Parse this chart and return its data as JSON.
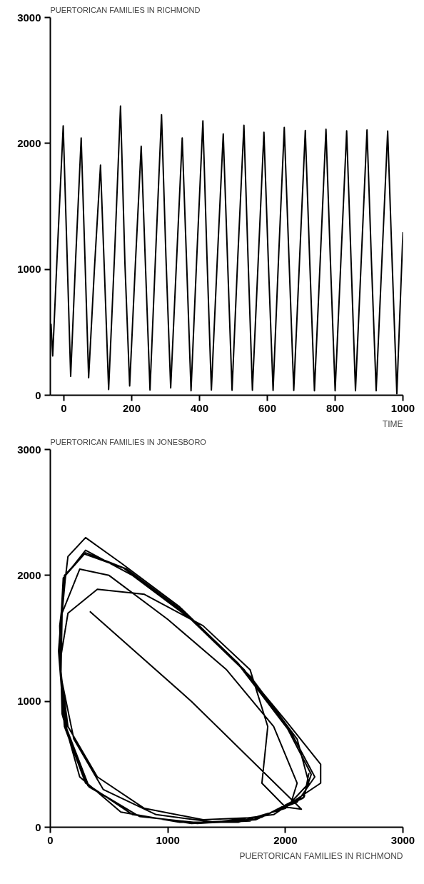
{
  "chart_data": [
    {
      "type": "line",
      "ylabel": "PUERTORICAN FAMILIES IN RICHMOND",
      "xlabel": "TIME",
      "xlim": [
        -40,
        1000
      ],
      "ylim": [
        0,
        3000
      ],
      "xticks": [
        0,
        200,
        400,
        600,
        800,
        1000
      ],
      "yticks": [
        0,
        1000,
        2000,
        3000
      ],
      "x": [
        -38,
        -33,
        -20,
        -2,
        9,
        20,
        35,
        51,
        62,
        73,
        90,
        108,
        120,
        132,
        150,
        167,
        180,
        194,
        211,
        228,
        241,
        254,
        271,
        288,
        301,
        315,
        332,
        349,
        362,
        375,
        392,
        410,
        422,
        435,
        452,
        470,
        483,
        496,
        513,
        531,
        543,
        556,
        573,
        590,
        603,
        617,
        633,
        650,
        664,
        678,
        695,
        712,
        725,
        739,
        756,
        773,
        786,
        800,
        817,
        834,
        847,
        860,
        877,
        894,
        907,
        921,
        938,
        955,
        968,
        982,
        1000
      ],
      "series": [
        {
          "color": "#000000",
          "values": [
            567,
            312,
            1100,
            2140,
            1150,
            150,
            1100,
            2043,
            1100,
            139,
            1000,
            1827,
            950,
            46,
            1150,
            2297,
            1050,
            74,
            1050,
            1978,
            1000,
            42,
            1150,
            2228,
            1100,
            58,
            1050,
            2043,
            1050,
            35,
            1100,
            2179,
            1100,
            42,
            1050,
            2075,
            1050,
            40,
            1100,
            2144,
            1100,
            40,
            1060,
            2089,
            1060,
            38,
            1080,
            2126,
            1080,
            38,
            1070,
            2103,
            1070,
            35,
            1070,
            2112,
            1070,
            35,
            1070,
            2100,
            1070,
            35,
            1070,
            2107,
            1070,
            35,
            1070,
            2098,
            1070,
            12,
            1295
          ]
        }
      ]
    },
    {
      "type": "line",
      "ylabel": "PUERTORICAN FAMILIES IN JONESBORO",
      "xlabel": "PUERTORICAN FAMILIES IN RICHMOND",
      "xlim": [
        0,
        3000
      ],
      "ylim": [
        0,
        3000
      ],
      "xticks": [
        0,
        1000,
        2000,
        3000
      ],
      "yticks": [
        0,
        1000,
        2000,
        3000
      ],
      "x": [
        336,
        1200,
        2136,
        2000,
        1800,
        1850,
        1700,
        1300,
        800,
        400,
        150,
        80,
        150,
        400,
        800,
        1300,
        1800,
        2050,
        2100,
        1900,
        1500,
        1000,
        500,
        250,
        100,
        90,
        200,
        450,
        900,
        1400,
        1900,
        2300,
        2300,
        2000,
        1600,
        1100,
        600,
        300,
        150,
        80,
        100,
        250,
        600,
        1100,
        1600,
        2000,
        2200,
        2100,
        1700,
        1200,
        700,
        300,
        130,
        70,
        120,
        300,
        700,
        1200,
        1700,
        2100,
        2250,
        2050,
        1650,
        1150,
        650,
        300,
        120,
        70,
        130,
        320,
        750,
        1250,
        1750,
        2150,
        2220,
        2020,
        1620,
        1120,
        620,
        290,
        110,
        75,
        140,
        330,
        760,
        1260,
        1760,
        2160,
        2200
      ],
      "series": [
        {
          "color": "#000000",
          "values": [
            1714,
            1000,
            143,
            160,
            350,
            800,
            1250,
            1600,
            1850,
            1890,
            1700,
            1300,
            800,
            400,
            150,
            60,
            80,
            200,
            350,
            800,
            1250,
            1650,
            2000,
            2050,
            1700,
            1200,
            700,
            300,
            100,
            40,
            100,
            350,
            500,
            850,
            1300,
            1750,
            2100,
            2300,
            2150,
            1600,
            900,
            400,
            120,
            40,
            40,
            150,
            350,
            700,
            1200,
            1650,
            2000,
            2200,
            2000,
            1400,
            800,
            350,
            100,
            30,
            50,
            200,
            400,
            750,
            1250,
            1700,
            2050,
            2180,
            2000,
            1400,
            800,
            330,
            90,
            30,
            60,
            230,
            420,
            780,
            1270,
            1720,
            2060,
            2170,
            1980,
            1380,
            780,
            320,
            85,
            35,
            65,
            240,
            430
          ]
        }
      ]
    }
  ]
}
